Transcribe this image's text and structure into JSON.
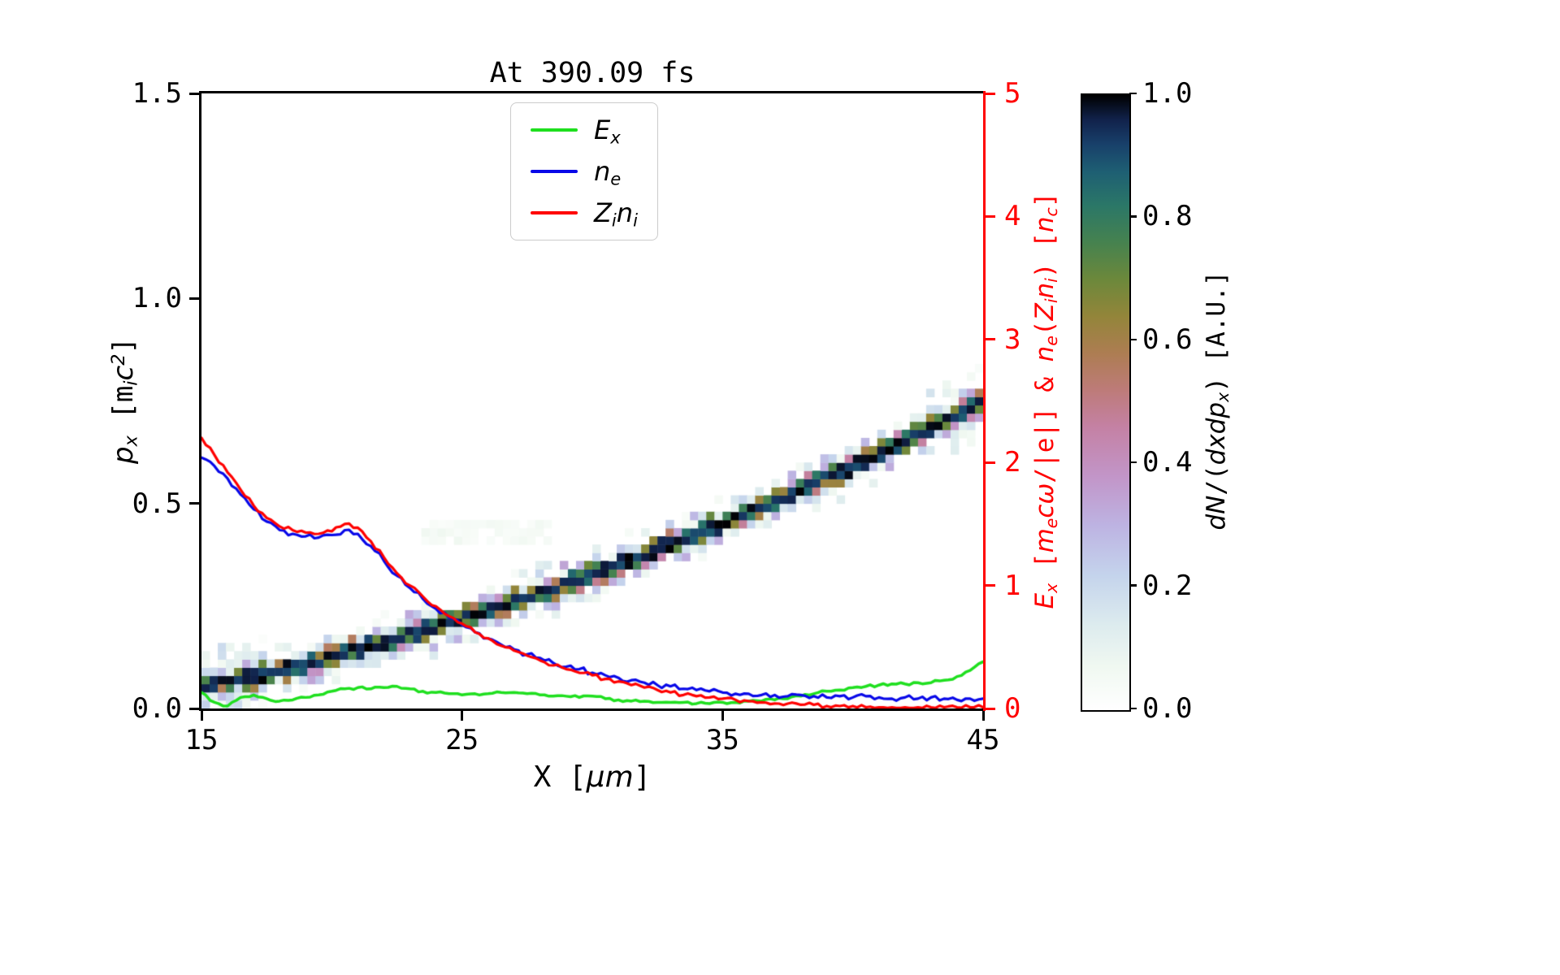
{
  "chart_data": {
    "type": "heatmap+line",
    "title": "At 390.09 fs",
    "x_axis": {
      "range": [
        15,
        45
      ],
      "ticks": [
        "15",
        "25",
        "35",
        "45"
      ],
      "label_rich": [
        {
          "v": "span",
          "t": "X ["
        },
        {
          "v": "i",
          "t": "μm"
        },
        {
          "v": "span",
          "t": "]"
        }
      ]
    },
    "y_left": {
      "range": [
        0,
        1.5
      ],
      "ticks": [
        "0.0",
        "0.5",
        "1.0",
        "1.5"
      ],
      "label_rich": [
        {
          "v": "i",
          "t": "p"
        },
        {
          "v": "sub",
          "t": "x"
        },
        {
          "v": "span",
          "t": " [m"
        },
        {
          "v": "sub",
          "t": "i"
        },
        {
          "v": "i",
          "t": "c"
        },
        {
          "v": "sup",
          "t": "2"
        },
        {
          "v": "span",
          "t": "]"
        }
      ]
    },
    "y_right": {
      "range": [
        0,
        5
      ],
      "ticks": [
        "0",
        "1",
        "2",
        "3",
        "4",
        "5"
      ],
      "color": "#ff0000",
      "label_rich": [
        {
          "v": "i",
          "t": "E"
        },
        {
          "v": "sub",
          "t": "x"
        },
        {
          "v": "span",
          "t": " ["
        },
        {
          "v": "i",
          "t": "m"
        },
        {
          "v": "sub",
          "t": "e"
        },
        {
          "v": "i",
          "t": "cω"
        },
        {
          "v": "span",
          "t": "/|e|] & "
        },
        {
          "v": "i",
          "t": "n"
        },
        {
          "v": "sub",
          "t": "e"
        },
        {
          "v": "span",
          "t": "("
        },
        {
          "v": "i",
          "t": "Z"
        },
        {
          "v": "sub",
          "t": "i"
        },
        {
          "v": "i",
          "t": "n"
        },
        {
          "v": "sub",
          "t": "i"
        },
        {
          "v": "span",
          "t": ") ["
        },
        {
          "v": "i",
          "t": "n"
        },
        {
          "v": "sub",
          "t": "c"
        },
        {
          "v": "span",
          "t": "]"
        }
      ]
    },
    "series": [
      {
        "name": "Ex",
        "label_rich": [
          {
            "v": "i",
            "t": "E"
          },
          {
            "v": "sub",
            "t": "x"
          }
        ],
        "color": "#1fdf1f",
        "axis": "right",
        "width": 3.5,
        "noise": 0.012,
        "seed": 3,
        "x_start": 15,
        "x_step": 0.5,
        "values": [
          0.13,
          0.05,
          0.02,
          0.09,
          0.11,
          0.08,
          0.06,
          0.07,
          0.09,
          0.11,
          0.14,
          0.16,
          0.17,
          0.16,
          0.17,
          0.18,
          0.16,
          0.14,
          0.13,
          0.12,
          0.11,
          0.12,
          0.12,
          0.13,
          0.13,
          0.12,
          0.11,
          0.1,
          0.1,
          0.09,
          0.1,
          0.08,
          0.07,
          0.06,
          0.06,
          0.05,
          0.05,
          0.05,
          0.04,
          0.04,
          0.05,
          0.05,
          0.06,
          0.06,
          0.07,
          0.08,
          0.1,
          0.12,
          0.14,
          0.15,
          0.17,
          0.18,
          0.19,
          0.2,
          0.2,
          0.21,
          0.21,
          0.23,
          0.26,
          0.31,
          0.38
        ]
      },
      {
        "name": "ne",
        "label_rich": [
          {
            "v": "i",
            "t": "n"
          },
          {
            "v": "sub",
            "t": "e"
          }
        ],
        "color": "#0808e8",
        "axis": "right",
        "width": 3.2,
        "noise": 0.022,
        "seed": 5,
        "x_start": 15,
        "x_step": 0.5,
        "values": [
          2.04,
          1.97,
          1.87,
          1.74,
          1.62,
          1.52,
          1.45,
          1.42,
          1.4,
          1.39,
          1.41,
          1.45,
          1.42,
          1.32,
          1.2,
          1.08,
          0.98,
          0.89,
          0.81,
          0.74,
          0.68,
          0.62,
          0.57,
          0.52,
          0.48,
          0.44,
          0.41,
          0.37,
          0.34,
          0.32,
          0.29,
          0.27,
          0.25,
          0.23,
          0.21,
          0.19,
          0.18,
          0.16,
          0.15,
          0.14,
          0.13,
          0.12,
          0.12,
          0.11,
          0.11,
          0.1,
          0.11,
          0.1,
          0.09,
          0.1,
          0.09,
          0.1,
          0.09,
          0.08,
          0.09,
          0.08,
          0.09,
          0.08,
          0.07,
          0.08,
          0.08
        ]
      },
      {
        "name": "Zini",
        "label_rich": [
          {
            "v": "i",
            "t": "Z"
          },
          {
            "v": "sub",
            "t": "i"
          },
          {
            "v": "i",
            "t": "n"
          },
          {
            "v": "sub",
            "t": "i"
          }
        ],
        "color": "#ff0000",
        "axis": "right",
        "width": 3.2,
        "noise": 0.018,
        "seed": 9,
        "x_start": 15,
        "x_step": 0.5,
        "values": [
          2.2,
          2.06,
          1.92,
          1.78,
          1.65,
          1.55,
          1.48,
          1.45,
          1.43,
          1.42,
          1.44,
          1.5,
          1.47,
          1.36,
          1.23,
          1.1,
          1.0,
          0.91,
          0.83,
          0.75,
          0.69,
          0.62,
          0.57,
          0.51,
          0.47,
          0.43,
          0.39,
          0.35,
          0.32,
          0.29,
          0.27,
          0.24,
          0.22,
          0.19,
          0.17,
          0.15,
          0.13,
          0.11,
          0.1,
          0.09,
          0.08,
          0.07,
          0.06,
          0.05,
          0.04,
          0.04,
          0.03,
          0.03,
          0.02,
          0.02,
          0.02,
          0.01,
          0.01,
          0.01,
          0.01,
          0.01,
          0.01,
          0.01,
          0.01,
          0.01,
          0.01
        ]
      }
    ],
    "heatmap": {
      "description": "proton phase-space density band rising from (15,0.05) to (45,0.75) m_i c^2",
      "nx": 96,
      "ny": 75,
      "band_poly": [
        0.05,
        0.415,
        0.285
      ],
      "seed": 42,
      "haze": [
        {
          "x": [
            15,
            17.5
          ],
          "spread": 4,
          "density": 0.55,
          "vmax": 0.18
        },
        {
          "x": [
            42.5,
            45
          ],
          "spread": 4,
          "density": 0.5,
          "vmax": 0.15
        }
      ],
      "smudge": {
        "x": [
          23.5,
          28.5
        ],
        "p": [
          0.4,
          0.47
        ],
        "value": 0.07
      }
    },
    "colorbar": {
      "range": [
        0,
        1
      ],
      "ticks": [
        "0.0",
        "0.2",
        "0.4",
        "0.6",
        "0.8",
        "1.0"
      ],
      "label_rich": [
        {
          "v": "i",
          "t": "dN"
        },
        {
          "v": "span",
          "t": "/("
        },
        {
          "v": "i",
          "t": "dxdp"
        },
        {
          "v": "sub",
          "t": "x"
        },
        {
          "v": "span",
          "t": ") [A.U.]"
        }
      ],
      "stops": [
        [
          0.0,
          "#ffffff"
        ],
        [
          0.07,
          "#f0f8f1"
        ],
        [
          0.14,
          "#dcebee"
        ],
        [
          0.22,
          "#c4d3ec"
        ],
        [
          0.3,
          "#bdb3e2"
        ],
        [
          0.38,
          "#c295c8"
        ],
        [
          0.46,
          "#c481a4"
        ],
        [
          0.52,
          "#bd7b79"
        ],
        [
          0.58,
          "#ad7d52"
        ],
        [
          0.64,
          "#93853a"
        ],
        [
          0.7,
          "#6c883b"
        ],
        [
          0.76,
          "#46824f"
        ],
        [
          0.82,
          "#2b7767"
        ],
        [
          0.875,
          "#1e5f73"
        ],
        [
          0.92,
          "#18406a"
        ],
        [
          0.96,
          "#11224b"
        ],
        [
          1.0,
          "#000000"
        ]
      ]
    }
  }
}
